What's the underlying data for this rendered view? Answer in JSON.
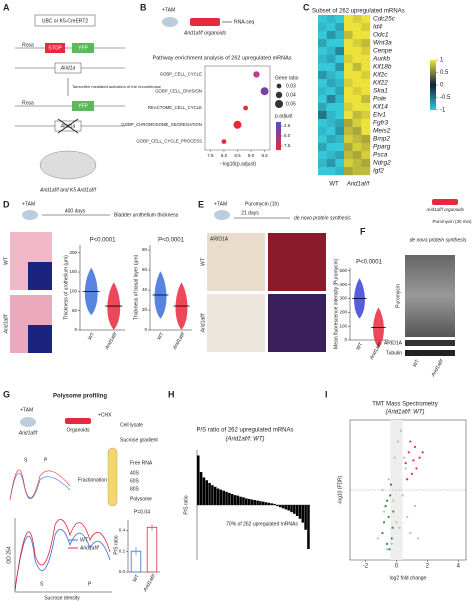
{
  "a": {
    "letter": "A",
    "cre": "UBC or K5-CreERT2",
    "rosa": [
      "Rosa",
      "Rosa"
    ],
    "stop": "STOP",
    "yfp": [
      "YFP",
      "YFP"
    ],
    "arid": [
      "Arid1a",
      "Arid1a"
    ],
    "tam": "Tamoxifen mediated activation of the recombinase",
    "mice": "Arid1af/f and K5 Arid1af/f"
  },
  "b": {
    "letter": "B",
    "tam": "+TAM",
    "organoids": "Arid1af/f organoids",
    "rnaseq": "RNA-seq",
    "title": "Pathway enrichment analysis of 262 upregulated mRNAs",
    "chart": {
      "type": "dot",
      "categories": [
        "GOBP_CELL_CYCLE",
        "GOBP_CELL_DIVISION",
        "REACTOME_CELL_CYCLE",
        "GOBP_CHROMOSOME_SEGREGATION",
        "GOBP_CELL_CYCLE_PROCESS"
      ],
      "x": [
        9.2,
        9.5,
        8.8,
        8.5,
        8.0
      ],
      "size": [
        0.04,
        0.05,
        0.03,
        0.05,
        0.03
      ],
      "colors": [
        "#c2388f",
        "#7b3fa0",
        "#e8283c",
        "#e8283c",
        "#e8283c"
      ],
      "xlim": [
        7.3,
        9.7
      ],
      "xticks": [
        7.5,
        {
          "value": 8,
          "label": "8.0"
        },
        8.5,
        {
          "value": 9,
          "label": "9.0"
        },
        9.5
      ],
      "xlabel": "−log10(p.adjust)",
      "size_title": "Gene ratio",
      "size_legend": [
        0.03,
        0.04,
        0.05
      ],
      "color_title": "p.adjust",
      "clim": [
        1.5,
        8.5
      ],
      "cticks": [
        2.5,
        {
          "value": 5,
          "label": "5.0"
        },
        7.5
      ]
    }
  },
  "c": {
    "letter": "C",
    "title": "Subset of 262 upregulated mRNAs",
    "genes": [
      "Cdc25c",
      "Id4",
      "Odc1",
      "Wnt3a",
      "Cenpe",
      "Aurkb",
      "Kif18b",
      "Kif2c",
      "Kif22",
      "Ska1",
      "Pole",
      "Kif14",
      "Etv1",
      "Fgfr3",
      "Meis2",
      "Bmp2",
      "Pparg",
      "Psca",
      "Ndrg2",
      "Igf2"
    ],
    "groups": [
      "WT",
      "Arid1af/f"
    ],
    "chart": {
      "type": "heatmap",
      "colormap": [
        "#35c8d8",
        "#10203a",
        "#ece23a"
      ],
      "clim": [
        -1,
        1
      ],
      "cticks": [
        1,
        0.5,
        0,
        -0.5,
        -1
      ],
      "values": [
        [
          -1,
          -0.9,
          -1,
          1,
          0.9,
          1
        ],
        [
          -0.9,
          -1,
          -0.8,
          1,
          1,
          0.9
        ],
        [
          -1,
          -0.7,
          -0.9,
          0.8,
          1,
          1
        ],
        [
          -0.8,
          -1,
          -1,
          1,
          0.9,
          0.8
        ],
        [
          -1,
          -0.9,
          -0.6,
          1,
          1,
          0.9
        ],
        [
          -0.9,
          -0.8,
          -1,
          0.9,
          1,
          1
        ],
        [
          -1,
          -1,
          -0.7,
          1,
          0.8,
          1
        ],
        [
          -0.7,
          -0.9,
          -1,
          1,
          1,
          0.9
        ],
        [
          -1,
          -0.8,
          -0.9,
          0.9,
          1,
          1
        ],
        [
          -0.9,
          -1,
          -0.8,
          1,
          0.9,
          1
        ],
        [
          -1,
          -0.6,
          -0.9,
          1,
          1,
          0.8
        ],
        [
          -0.8,
          -1,
          -1,
          0.9,
          1,
          1
        ],
        [
          -0.5,
          -0.9,
          -1,
          1,
          0.8,
          0.9
        ],
        [
          -1,
          -0.9,
          -0.8,
          0.7,
          0.9,
          1
        ],
        [
          -0.9,
          -1,
          -0.7,
          0.8,
          0.7,
          1
        ],
        [
          -1,
          -0.8,
          -0.9,
          0.9,
          0.8,
          0.7
        ],
        [
          -0.8,
          -1,
          -1,
          0.7,
          0.9,
          0.8
        ],
        [
          -1,
          -0.9,
          -0.8,
          0.8,
          0.7,
          0.9
        ],
        [
          -0.9,
          -0.7,
          -1,
          0.9,
          0.8,
          0.7
        ],
        [
          -1,
          -1,
          -0.9,
          0.7,
          0.8,
          0.8
        ]
      ]
    }
  },
  "d": {
    "letter": "D",
    "tam": "+TAM",
    "days": "400 days",
    "readout": "Bladder urothelium thickness",
    "rows": [
      "WT",
      "Arid1af/f"
    ],
    "charts": [
      {
        "type": "violin",
        "categories": [
          "WT",
          "Arid1af/f"
        ],
        "medians": [
          100,
          62
        ],
        "colors": [
          "#3a6fd8",
          "#e8283c"
        ],
        "ylim": [
          0,
          220
        ],
        "yticks": [
          0,
          50,
          100,
          150,
          200
        ],
        "ylabel": "Thickness of urothelium (µm)",
        "p": "P<0.0001"
      },
      {
        "type": "violin",
        "categories": [
          "WT",
          "Arid1af/f"
        ],
        "medians": [
          35,
          24
        ],
        "colors": [
          "#3a6fd8",
          "#e8283c"
        ],
        "ylim": [
          0,
          85
        ],
        "yticks": [
          0,
          20,
          40,
          60,
          80
        ],
        "ylabel": "Thickness of basal layer (µm)",
        "p": "P<0.0001"
      }
    ]
  },
  "e": {
    "letter": "E",
    "tam": "+TAM",
    "puromycin": "Puromycin (1h)",
    "days": "21 days",
    "readout": "de novo protein synthesis",
    "stain": "ARID1A",
    "rows": [
      "WT",
      "Arid1af/f"
    ],
    "chart": {
      "type": "violin",
      "categories": [
        "WT",
        "Arid1af/f"
      ],
      "medians": [
        300,
        90
      ],
      "colors": [
        "#3a3fd8",
        "#e8283c"
      ],
      "ylim": [
        0,
        520
      ],
      "yticks": [
        0,
        100,
        200,
        300,
        400,
        500
      ],
      "ylabel": "Mean fluorescence intensity [Puromycin]",
      "p": "P<0.0001"
    }
  },
  "f": {
    "letter": "F",
    "organoids": "Arid1af/f organoids",
    "puromycin": "Puromycin (30 min)",
    "readout": "de novo protein synthesis",
    "bands": [
      "Puromycin",
      "ARID1A",
      "Tubulin"
    ],
    "lanes": [
      "WT",
      "Arid1af/f"
    ]
  },
  "g": {
    "letter": "G",
    "title": "Polysome profiling",
    "tam": "+TAM",
    "mouse": "Arid1af/f",
    "organoids": "Organoids",
    "chx": "+CHX",
    "lysate": "Cell lysate",
    "gradient": "Sucrose gradient",
    "fractions": [
      "Free RNA",
      "40S",
      "60S",
      "80S",
      "Polysome"
    ],
    "fractionation": "Fractionation",
    "peaks": [
      "S",
      "P"
    ],
    "legend": [
      "WT",
      "Arid1af/f"
    ],
    "ylabel": "OD 254",
    "xlabel": "Sucrose density",
    "chart": {
      "type": "bar",
      "categories": [
        "WT",
        "Arid1af/f"
      ],
      "values": [
        0.2,
        0.43
      ],
      "errors": [
        0.04,
        0.03
      ],
      "colors": [
        "#3a6fd8",
        "#e8283c"
      ],
      "ylim": [
        0,
        0.5
      ],
      "yticks": [
        {
          "value": 0,
          "label": "0.0"
        },
        0.2,
        0.4
      ],
      "ylabel": "P/S ratio",
      "p": "P=0.04"
    }
  },
  "h": {
    "letter": "H",
    "title": "P/S ratio of 262 upregulated mRNAs",
    "subtitle": "(Arid1af/f: WT)",
    "annotation": "70% of 262 upregulated mRNAs",
    "chart": {
      "type": "waterfall",
      "ylabel": "P/S ratio",
      "ylim": [
        -1,
        1
      ],
      "color": "#000000",
      "values": [
        0.9,
        0.6,
        0.5,
        0.45,
        0.4,
        0.36,
        0.33,
        0.3,
        0.28,
        0.26,
        0.24,
        0.22,
        0.2,
        0.18,
        0.17,
        0.15,
        0.14,
        0.12,
        0.11,
        0.1,
        0.09,
        0.08,
        0.07,
        0.06,
        0.05,
        0.04,
        0.03,
        0.02,
        -0.02,
        -0.04,
        -0.06,
        -0.08,
        -0.1,
        -0.13,
        -0.16,
        -0.2,
        -0.25,
        -0.32,
        -0.45,
        -0.8
      ]
    }
  },
  "i": {
    "letter": "I",
    "title": "TMT Mass Spectrometry",
    "subtitle": "(Arid1af/f: WT)",
    "chart": {
      "type": "scatter",
      "xlabel": "log2 fold change",
      "ylabel": "-log10 (FDR)",
      "xlim": [
        -3,
        4.5
      ],
      "xticks": [
        -2,
        0,
        2,
        4
      ],
      "ylim": [
        0,
        2.6
      ],
      "series": [
        {
          "color": "#bbbbbb",
          "x": [
            -1.2,
            -0.8,
            -0.5,
            -0.3,
            -0.1,
            0.1,
            0.2,
            0.4,
            0.6,
            0.9,
            1.2,
            -0.6,
            0.3,
            0.7,
            -0.2,
            0.5,
            1.4,
            -0.9,
            0.0,
            0.8
          ],
          "y": [
            0.4,
            0.9,
            1.5,
            0.3,
            1.9,
            2.2,
            0.6,
            1.2,
            1.7,
            0.5,
            1.0,
            0.2,
            2.4,
            0.8,
            1.1,
            1.9,
            0.4,
            1.3,
            0.7,
            2.0
          ]
        },
        {
          "color": "#2e8b3a",
          "x": [
            -0.9,
            -0.7,
            -0.6,
            -0.5,
            -0.4,
            -0.3,
            -0.2,
            -0.8,
            -0.45,
            -0.25,
            -0.6,
            -0.35
          ],
          "y": [
            0.5,
            1.0,
            0.3,
            0.8,
            1.2,
            0.4,
            0.9,
            0.7,
            0.2,
            0.6,
            1.1,
            1.4
          ]
        },
        {
          "color": "#e8283c",
          "x": [
            0.6,
            0.8,
            1.0,
            1.2,
            1.5,
            0.9,
            1.3,
            1.7,
            0.7,
            1.1
          ],
          "y": [
            1.8,
            2.0,
            1.6,
            2.1,
            1.9,
            2.2,
            1.7,
            2.0,
            1.5,
            1.85
          ]
        }
      ]
    }
  }
}
